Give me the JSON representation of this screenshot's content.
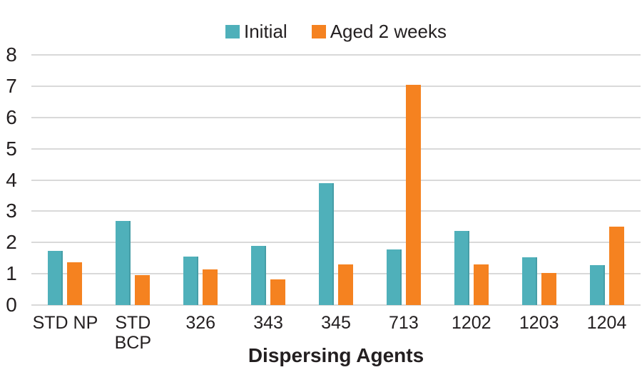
{
  "chart_data": {
    "type": "bar",
    "categories": [
      "STD NP",
      "STD BCP",
      "326",
      "343",
      "345",
      "713",
      "1202",
      "1203",
      "1204"
    ],
    "series": [
      {
        "name": "Initial",
        "color": "#4FB0BA",
        "values": [
          1.73,
          2.7,
          1.55,
          1.9,
          3.9,
          1.78,
          2.38,
          1.53,
          1.27
        ]
      },
      {
        "name": "Aged 2 weeks",
        "color": "#F58220",
        "values": [
          1.37,
          0.95,
          1.13,
          0.83,
          1.3,
          7.05,
          1.31,
          1.02,
          2.5
        ]
      }
    ],
    "xlabel": "Dispersing Agents",
    "ylim": [
      0,
      8
    ],
    "yticks": [
      0,
      1,
      2,
      3,
      4,
      5,
      6,
      7,
      8
    ],
    "grid": true,
    "gridline_color": "#D9D9D9",
    "text_color": "#231F20",
    "background": "#FFFFFF",
    "legend_position": "top-center"
  }
}
